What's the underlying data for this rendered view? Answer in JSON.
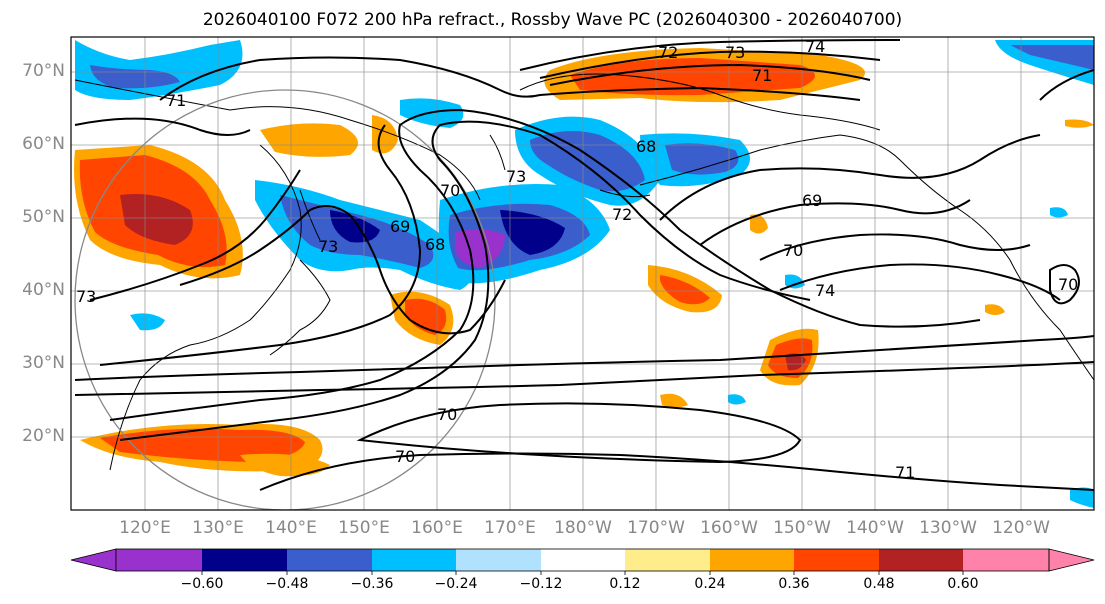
{
  "title": "2026040100 F072 200 hPa refract., Rossby Wave PC (2026040300 - 2026040700)",
  "lat_labels": [
    "70°N",
    "60°N",
    "50°N",
    "40°N",
    "30°N",
    "20°N"
  ],
  "lon_labels": [
    "120°E",
    "130°E",
    "140°E",
    "150°E",
    "160°E",
    "170°E",
    "180°W",
    "170°W",
    "160°W",
    "150°W",
    "140°W",
    "130°W",
    "120°W"
  ],
  "colorbar": {
    "tick_labels": [
      "−0.60",
      "−0.48",
      "−0.36",
      "−0.24",
      "−0.12",
      "0.12",
      "0.24",
      "0.36",
      "0.48",
      "0.60"
    ],
    "colors": [
      "#9932cc",
      "#00008b",
      "#3a5fcd",
      "#00bfff",
      "#b0e2ff",
      "#ffffff",
      "#ffec8b",
      "#ffa500",
      "#ff4500",
      "#b22222",
      "#ff82ab"
    ]
  },
  "contour_labels": [
    "74",
    "73",
    "72",
    "71",
    "71",
    "73",
    "73",
    "70",
    "69",
    "68",
    "68",
    "72",
    "69",
    "70",
    "74",
    "73",
    "70",
    "70",
    "71",
    "70"
  ]
}
